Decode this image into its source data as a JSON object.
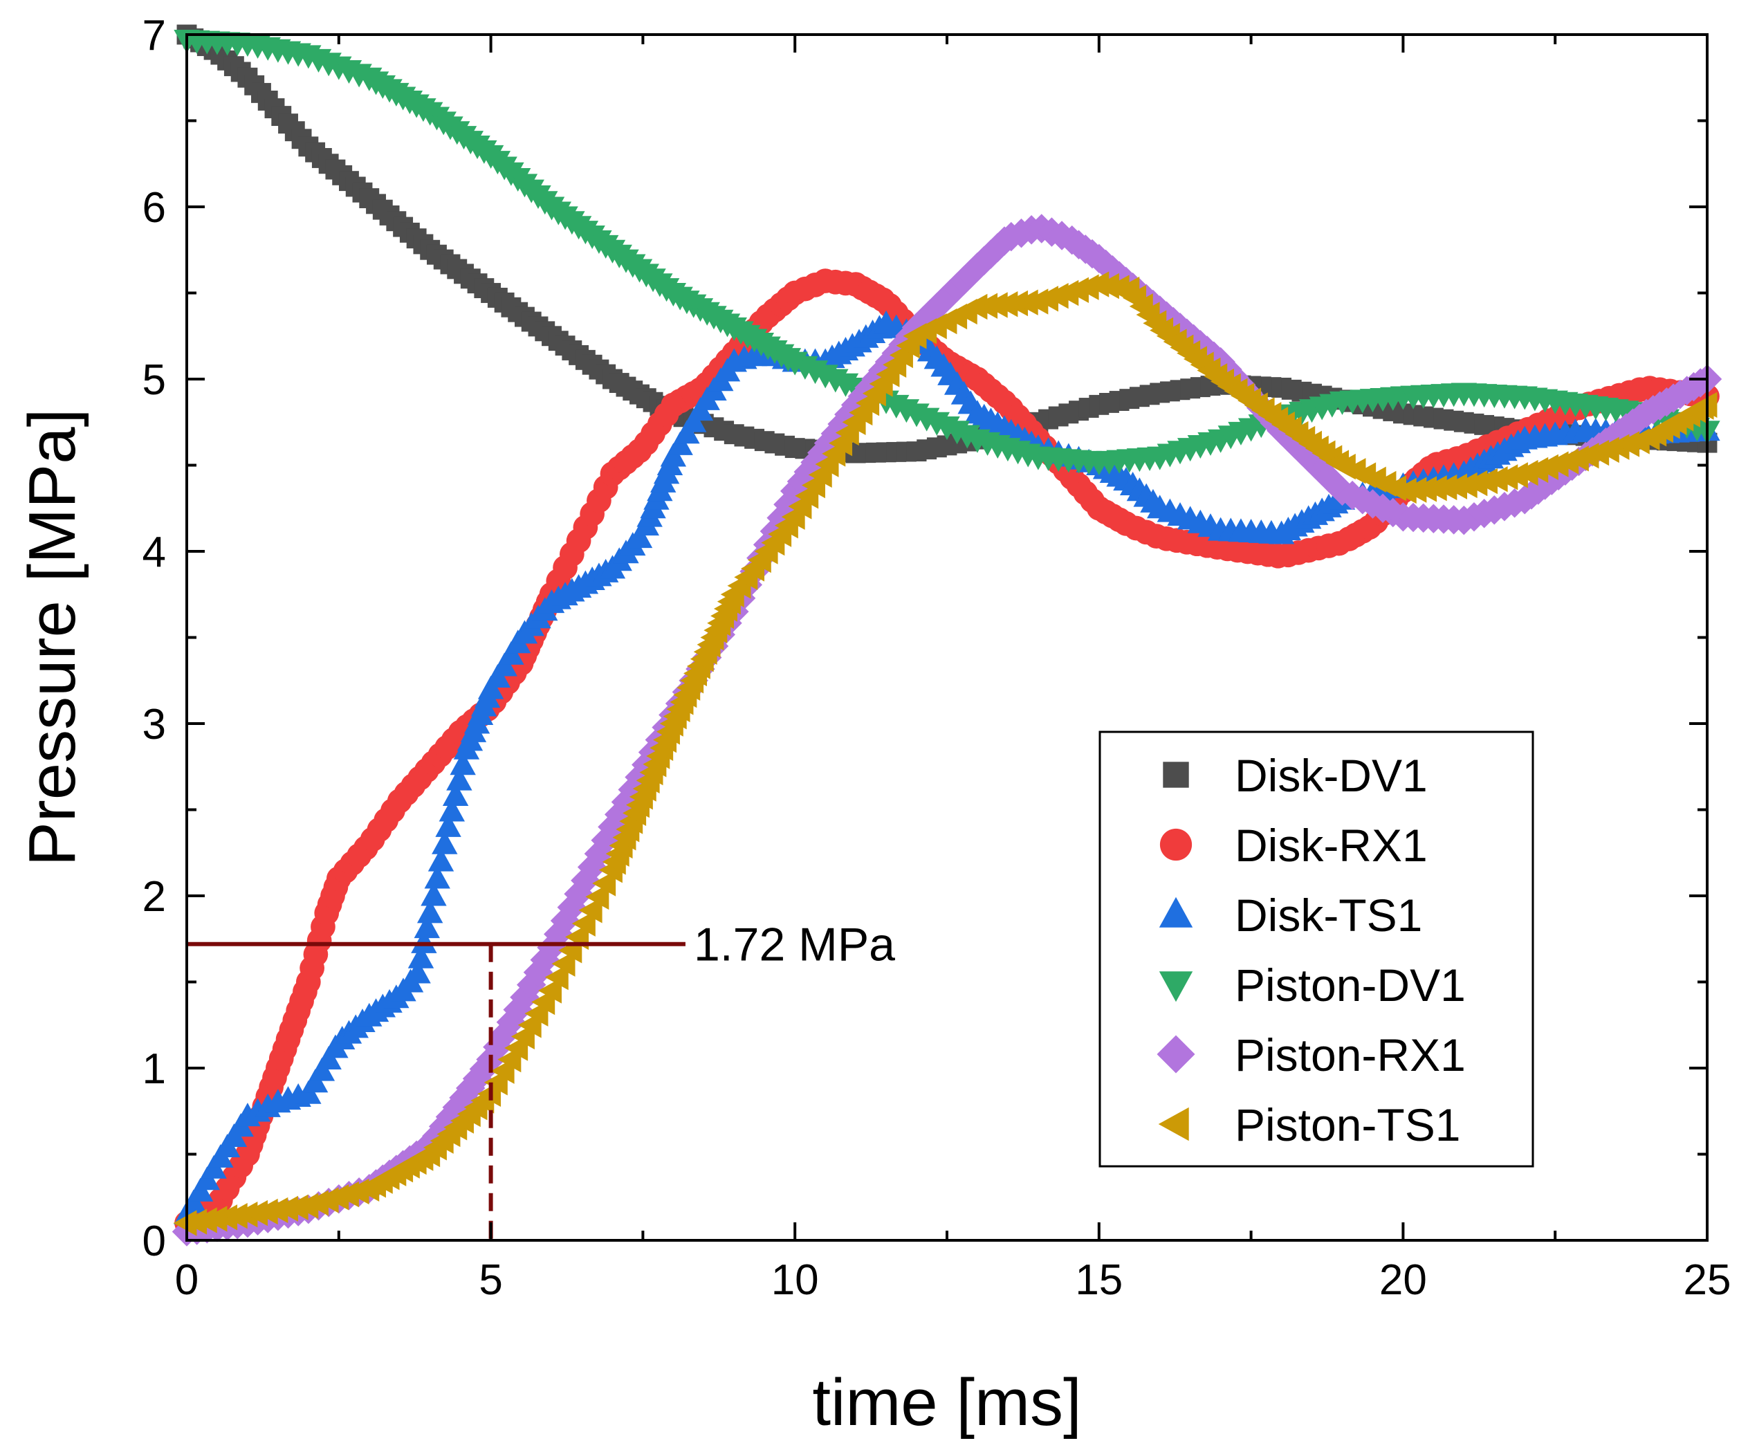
{
  "chart_data": {
    "type": "scatter",
    "xlabel": "time [ms]",
    "ylabel": "Pressure [MPa]",
    "xlim": [
      0,
      25
    ],
    "ylim": [
      0,
      7
    ],
    "xticks": [
      "0",
      "5",
      "10",
      "15",
      "20",
      "25"
    ],
    "yticks": [
      "0",
      "1",
      "2",
      "3",
      "4",
      "5",
      "6",
      "7"
    ],
    "grid": false,
    "legend_position": "bottom-right",
    "series": [
      {
        "name": "Disk-DV1",
        "marker": "square",
        "color": "#4d4d4d",
        "points": [
          [
            0,
            7.0
          ],
          [
            0.5,
            6.9
          ],
          [
            1,
            6.75
          ],
          [
            1.5,
            6.55
          ],
          [
            2,
            6.35
          ],
          [
            3,
            6.05
          ],
          [
            4,
            5.75
          ],
          [
            5,
            5.5
          ],
          [
            6,
            5.25
          ],
          [
            7,
            5.0
          ],
          [
            8,
            4.8
          ],
          [
            9,
            4.68
          ],
          [
            10,
            4.6
          ],
          [
            11,
            4.57
          ],
          [
            12,
            4.58
          ],
          [
            13,
            4.65
          ],
          [
            14,
            4.75
          ],
          [
            15,
            4.85
          ],
          [
            16,
            4.92
          ],
          [
            17,
            4.97
          ],
          [
            18,
            4.95
          ],
          [
            19,
            4.88
          ],
          [
            20,
            4.8
          ],
          [
            21,
            4.75
          ],
          [
            22,
            4.7
          ],
          [
            23,
            4.67
          ],
          [
            24,
            4.65
          ],
          [
            25,
            4.63
          ]
        ]
      },
      {
        "name": "Disk-RX1",
        "marker": "circle",
        "color": "#f03c3c",
        "points": [
          [
            0,
            0.1
          ],
          [
            0.5,
            0.2
          ],
          [
            1,
            0.5
          ],
          [
            1.5,
            1.0
          ],
          [
            2,
            1.5
          ],
          [
            2.3,
            1.9
          ],
          [
            2.5,
            2.1
          ],
          [
            3,
            2.3
          ],
          [
            3.5,
            2.55
          ],
          [
            4,
            2.75
          ],
          [
            4.5,
            2.95
          ],
          [
            5,
            3.1
          ],
          [
            5.5,
            3.35
          ],
          [
            6,
            3.75
          ],
          [
            6.5,
            4.1
          ],
          [
            7,
            4.45
          ],
          [
            7.5,
            4.6
          ],
          [
            8,
            4.85
          ],
          [
            8.5,
            4.95
          ],
          [
            9,
            5.15
          ],
          [
            9.5,
            5.35
          ],
          [
            10,
            5.5
          ],
          [
            10.5,
            5.57
          ],
          [
            11,
            5.55
          ],
          [
            11.5,
            5.45
          ],
          [
            12,
            5.25
          ],
          [
            12.5,
            5.1
          ],
          [
            13,
            5.0
          ],
          [
            13.5,
            4.85
          ],
          [
            14,
            4.65
          ],
          [
            14.5,
            4.45
          ],
          [
            15,
            4.25
          ],
          [
            15.5,
            4.15
          ],
          [
            16,
            4.08
          ],
          [
            17,
            4.02
          ],
          [
            18,
            3.97
          ],
          [
            19,
            4.05
          ],
          [
            19.5,
            4.15
          ],
          [
            20,
            4.35
          ],
          [
            20.5,
            4.5
          ],
          [
            21,
            4.55
          ],
          [
            22,
            4.7
          ],
          [
            23,
            4.85
          ],
          [
            24,
            4.95
          ],
          [
            25,
            4.9
          ]
        ]
      },
      {
        "name": "Disk-TS1",
        "marker": "triangle-up",
        "color": "#1f6fe0",
        "points": [
          [
            0,
            0.15
          ],
          [
            0.5,
            0.45
          ],
          [
            1,
            0.72
          ],
          [
            1.5,
            0.8
          ],
          [
            2,
            0.85
          ],
          [
            2.5,
            1.15
          ],
          [
            3,
            1.3
          ],
          [
            3.5,
            1.42
          ],
          [
            3.8,
            1.55
          ],
          [
            4,
            1.9
          ],
          [
            4.3,
            2.4
          ],
          [
            4.6,
            2.85
          ],
          [
            5,
            3.2
          ],
          [
            5.5,
            3.5
          ],
          [
            6,
            3.7
          ],
          [
            6.5,
            3.8
          ],
          [
            7,
            3.9
          ],
          [
            7.5,
            4.1
          ],
          [
            8,
            4.55
          ],
          [
            8.5,
            4.85
          ],
          [
            9,
            5.1
          ],
          [
            9.5,
            5.15
          ],
          [
            10,
            5.1
          ],
          [
            10.5,
            5.1
          ],
          [
            11,
            5.2
          ],
          [
            11.5,
            5.32
          ],
          [
            12,
            5.25
          ],
          [
            12.5,
            5.05
          ],
          [
            13,
            4.8
          ],
          [
            14,
            4.6
          ],
          [
            15,
            4.5
          ],
          [
            15.5,
            4.4
          ],
          [
            16,
            4.25
          ],
          [
            17,
            4.12
          ],
          [
            18,
            4.1
          ],
          [
            18.5,
            4.2
          ],
          [
            19,
            4.3
          ],
          [
            20,
            4.38
          ],
          [
            21,
            4.45
          ],
          [
            22,
            4.65
          ],
          [
            23,
            4.7
          ],
          [
            24,
            4.68
          ],
          [
            25,
            4.7
          ]
        ]
      },
      {
        "name": "Piston-DV1",
        "marker": "triangle-down",
        "color": "#2eaa66",
        "points": [
          [
            0,
            6.97
          ],
          [
            1,
            6.95
          ],
          [
            2,
            6.88
          ],
          [
            3,
            6.75
          ],
          [
            4,
            6.55
          ],
          [
            5,
            6.3
          ],
          [
            6,
            6.0
          ],
          [
            7,
            5.75
          ],
          [
            8,
            5.5
          ],
          [
            9,
            5.3
          ],
          [
            10,
            5.1
          ],
          [
            11,
            4.95
          ],
          [
            12,
            4.8
          ],
          [
            13,
            4.65
          ],
          [
            14,
            4.55
          ],
          [
            15,
            4.52
          ],
          [
            16,
            4.55
          ],
          [
            17,
            4.65
          ],
          [
            18,
            4.78
          ],
          [
            19,
            4.87
          ],
          [
            20,
            4.9
          ],
          [
            21,
            4.92
          ],
          [
            22,
            4.9
          ],
          [
            23,
            4.85
          ],
          [
            24,
            4.8
          ],
          [
            25,
            4.7
          ]
        ]
      },
      {
        "name": "Piston-RX1",
        "marker": "diamond",
        "color": "#b275de",
        "points": [
          [
            0,
            0.05
          ],
          [
            1,
            0.1
          ],
          [
            2,
            0.18
          ],
          [
            3,
            0.3
          ],
          [
            4,
            0.55
          ],
          [
            5,
            1.05
          ],
          [
            6,
            1.7
          ],
          [
            7,
            2.4
          ],
          [
            8,
            3.05
          ],
          [
            9,
            3.65
          ],
          [
            10,
            4.35
          ],
          [
            11,
            4.85
          ],
          [
            12,
            5.3
          ],
          [
            13,
            5.65
          ],
          [
            13.5,
            5.82
          ],
          [
            14,
            5.88
          ],
          [
            14.5,
            5.82
          ],
          [
            15,
            5.7
          ],
          [
            16,
            5.4
          ],
          [
            17,
            5.1
          ],
          [
            18,
            4.7
          ],
          [
            19,
            4.35
          ],
          [
            20,
            4.2
          ],
          [
            21,
            4.18
          ],
          [
            22,
            4.3
          ],
          [
            23,
            4.55
          ],
          [
            24,
            4.8
          ],
          [
            25,
            5.0
          ]
        ]
      },
      {
        "name": "Piston-TS1",
        "marker": "triangle-left",
        "color": "#cc9a06",
        "points": [
          [
            0,
            0.1
          ],
          [
            1,
            0.15
          ],
          [
            2,
            0.2
          ],
          [
            3,
            0.3
          ],
          [
            4,
            0.5
          ],
          [
            5,
            0.85
          ],
          [
            6,
            1.45
          ],
          [
            7,
            2.15
          ],
          [
            8,
            3.0
          ],
          [
            9,
            3.75
          ],
          [
            10,
            4.2
          ],
          [
            11,
            4.75
          ],
          [
            12,
            5.25
          ],
          [
            13,
            5.42
          ],
          [
            14,
            5.45
          ],
          [
            15,
            5.55
          ],
          [
            15.5,
            5.52
          ],
          [
            16,
            5.3
          ],
          [
            17,
            5.0
          ],
          [
            18,
            4.75
          ],
          [
            19,
            4.5
          ],
          [
            20,
            4.35
          ],
          [
            21,
            4.38
          ],
          [
            22,
            4.45
          ],
          [
            23,
            4.55
          ],
          [
            24,
            4.65
          ],
          [
            25,
            4.85
          ]
        ]
      }
    ],
    "annotations": {
      "hline": {
        "y": 1.72,
        "x_end": 8.2,
        "label": "1.72 MPa",
        "color": "#7a0a0a"
      },
      "vline": {
        "x": 5,
        "y_end": 1.72,
        "style": "dashed",
        "color": "#7a0a0a"
      }
    }
  }
}
